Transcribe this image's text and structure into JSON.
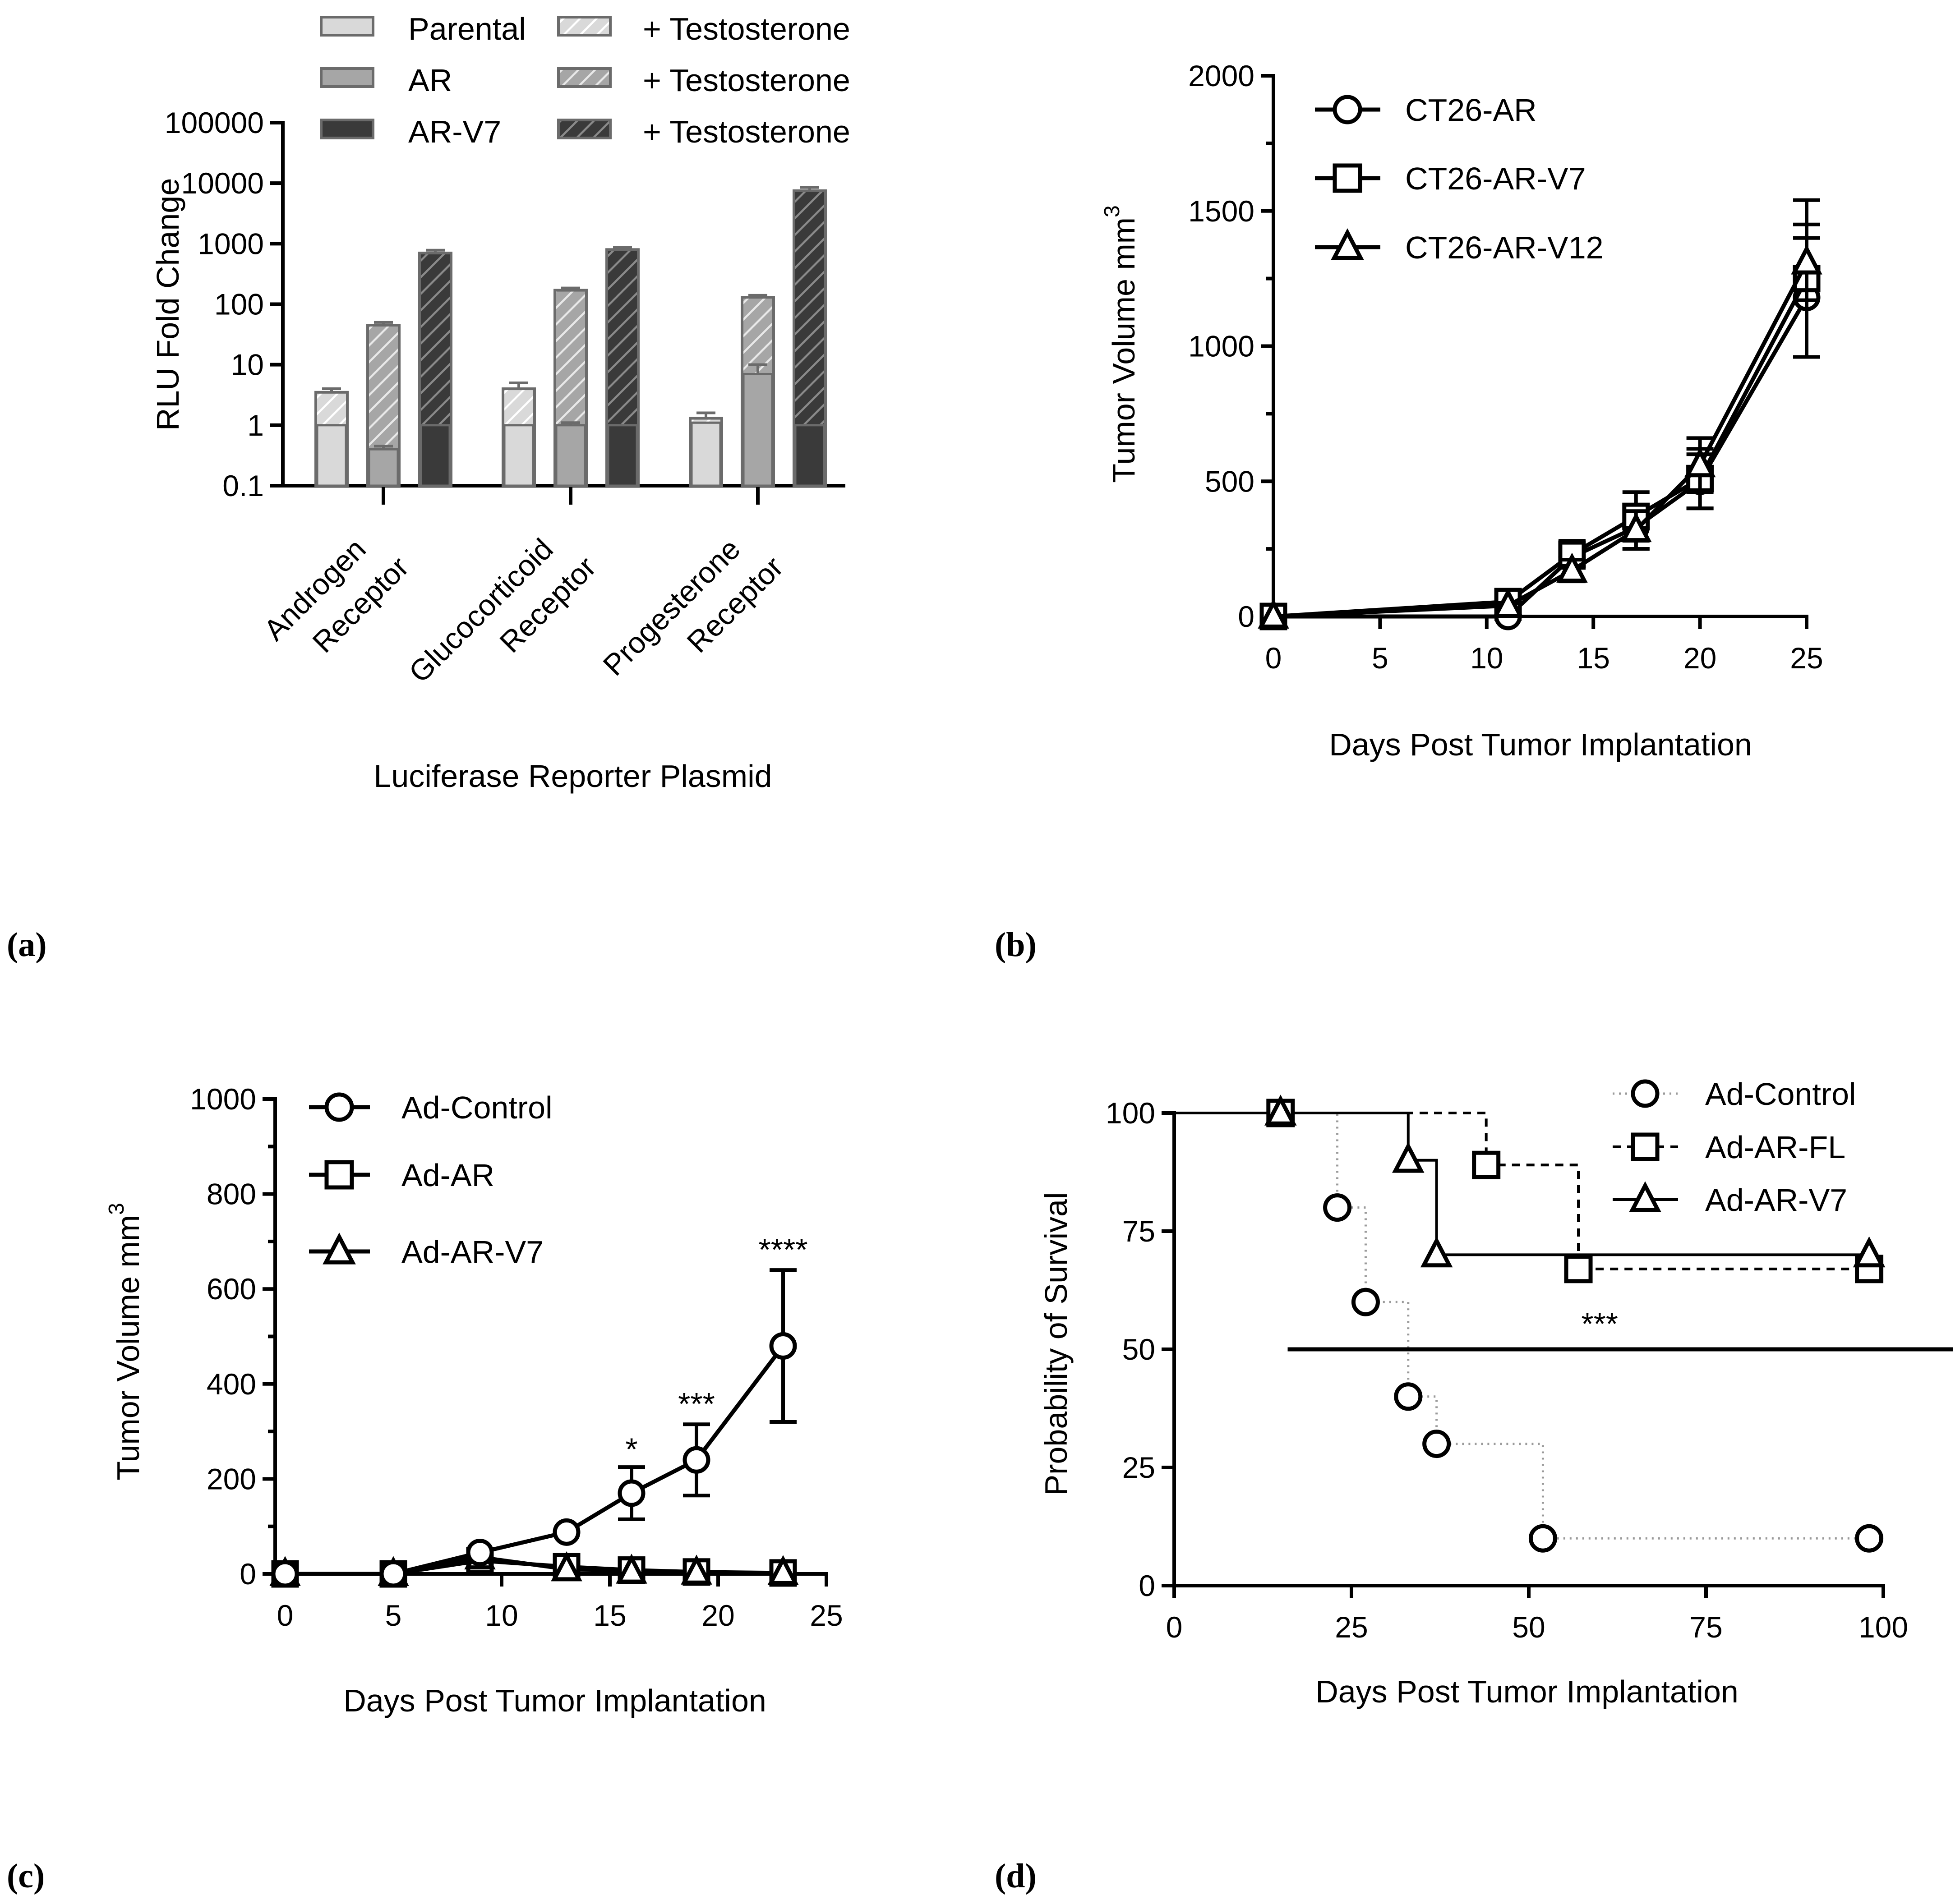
{
  "panels": {
    "a": {
      "label": "(a)"
    },
    "b": {
      "label": "(b)"
    },
    "c": {
      "label": "(c)"
    },
    "d": {
      "label": "(d)"
    }
  },
  "colors": {
    "parental": "#d9d9d9",
    "ar": "#a6a6a6",
    "ar_v7": "#3a3a3a",
    "outline": "#6b6b6b",
    "ink": "#000000",
    "dotted_gray": "#9a9a9a"
  },
  "chart_data": [
    {
      "id": "a",
      "type": "bar",
      "title": "",
      "xlabel": "Luciferase Reporter Plasmid",
      "ylabel": "RLU Fold Change",
      "yscale": "log",
      "ylim": [
        0.1,
        100000
      ],
      "yticks": [
        "0.1",
        "1",
        "10",
        "100",
        "1000",
        "10000",
        "100000"
      ],
      "categories": [
        [
          "Androgen",
          "Receptor"
        ],
        [
          "Glucocorticoid",
          "Receptor"
        ],
        [
          "Progesterone",
          "Receptor"
        ]
      ],
      "legend": [
        [
          "Parental",
          "+ Testosterone"
        ],
        [
          "AR",
          "+ Testosterone"
        ],
        [
          "AR-V7",
          "+ Testosterone"
        ]
      ],
      "legend_position": "top",
      "series": [
        {
          "name": "Parental",
          "color_key": "parental",
          "values": [
            1.0,
            1.0,
            1.1
          ],
          "errors": [
            0,
            0,
            0
          ]
        },
        {
          "name": "Parental + Testosterone",
          "color_key": "parental",
          "hatched": true,
          "values": [
            3.5,
            4.0,
            1.3
          ],
          "errors": [
            0.5,
            1.0,
            0.3
          ]
        },
        {
          "name": "AR",
          "color_key": "ar",
          "values": [
            0.4,
            1.0,
            7.0
          ],
          "errors": [
            0.05,
            0.1,
            3.0
          ]
        },
        {
          "name": "AR + Testosterone",
          "color_key": "ar",
          "hatched": true,
          "values": [
            45,
            170,
            130
          ],
          "errors": [
            5,
            15,
            10
          ]
        },
        {
          "name": "AR-V7",
          "color_key": "ar_v7",
          "values": [
            1.0,
            1.0,
            1.0
          ],
          "errors": [
            0,
            0,
            0
          ]
        },
        {
          "name": "AR-V7 + Testosterone",
          "color_key": "ar_v7",
          "hatched": true,
          "values": [
            700,
            800,
            7500
          ],
          "errors": [
            80,
            70,
            1000
          ]
        }
      ]
    },
    {
      "id": "b",
      "type": "line",
      "title": "",
      "xlabel": "Days Post Tumor Implantation",
      "ylabel": "Tumor Volume mm",
      "ylabel_superscript": "3",
      "xlim": [
        0,
        25
      ],
      "ylim": [
        0,
        2000
      ],
      "xticks": [
        "0",
        "5",
        "10",
        "15",
        "20",
        "25"
      ],
      "yticks": [
        "0",
        "500",
        "1000",
        "1500",
        "2000"
      ],
      "legend_position": "top-left",
      "series": [
        {
          "name": "CT26-AR",
          "marker": "circle",
          "x": [
            0,
            11,
            14,
            17,
            20,
            25
          ],
          "y": [
            0,
            0,
            220,
            330,
            500,
            1180
          ],
          "err": [
            0,
            10,
            40,
            80,
            100,
            220
          ]
        },
        {
          "name": "CT26-AR-V7",
          "marker": "square",
          "x": [
            0,
            11,
            14,
            17,
            20,
            25
          ],
          "y": [
            0,
            55,
            230,
            370,
            510,
            1250
          ],
          "err": [
            0,
            15,
            50,
            90,
            110,
            290
          ]
        },
        {
          "name": "CT26-AR-V12",
          "marker": "triangle",
          "x": [
            0,
            11,
            14,
            17,
            20,
            25
          ],
          "y": [
            0,
            40,
            170,
            320,
            560,
            1310
          ],
          "err": [
            0,
            10,
            40,
            70,
            100,
            140
          ]
        }
      ]
    },
    {
      "id": "c",
      "type": "line",
      "title": "",
      "xlabel": "Days Post Tumor Implantation",
      "ylabel": "Tumor Volume mm",
      "ylabel_superscript": "3",
      "xlim": [
        0,
        25
      ],
      "ylim": [
        0,
        1000
      ],
      "xticks": [
        "0",
        "5",
        "10",
        "15",
        "20",
        "25"
      ],
      "yticks": [
        "0",
        "200",
        "400",
        "600",
        "800",
        "1000"
      ],
      "legend_position": "top-left",
      "series": [
        {
          "name": "Ad-Control",
          "marker": "circle",
          "x": [
            0,
            5,
            9,
            13,
            16,
            19,
            23
          ],
          "y": [
            0,
            0,
            45,
            88,
            170,
            240,
            480
          ],
          "err": [
            0,
            0,
            10,
            15,
            55,
            75,
            160
          ]
        },
        {
          "name": "Ad-AR",
          "marker": "square",
          "x": [
            0,
            5,
            9,
            13,
            16,
            19,
            23
          ],
          "y": [
            0,
            0,
            28,
            15,
            8,
            4,
            2
          ],
          "err": [
            0,
            0,
            8,
            5,
            3,
            2,
            1
          ]
        },
        {
          "name": "Ad-AR-V7",
          "marker": "triangle",
          "x": [
            0,
            5,
            9,
            13,
            16,
            19,
            23
          ],
          "y": [
            0,
            0,
            35,
            10,
            5,
            3,
            2
          ],
          "err": [
            0,
            0,
            8,
            4,
            2,
            1,
            1
          ]
        }
      ],
      "annotations": [
        {
          "text": "*",
          "x": 16,
          "y": 240
        },
        {
          "text": "***",
          "x": 19,
          "y": 335
        },
        {
          "text": "****",
          "x": 23,
          "y": 660
        }
      ]
    },
    {
      "id": "d",
      "type": "line",
      "subtype": "survival-step",
      "title": "",
      "xlabel": "Days Post Tumor Implantation",
      "ylabel": "Probability of Survival",
      "xlim": [
        0,
        100
      ],
      "ylim": [
        0,
        100
      ],
      "xticks": [
        "0",
        "25",
        "50",
        "75",
        "100"
      ],
      "yticks": [
        "0",
        "25",
        "50",
        "75",
        "100"
      ],
      "legend_position": "top-right",
      "reference_line_y": 50,
      "series": [
        {
          "name": "Ad-Control",
          "marker": "circle",
          "line_style": "dotted",
          "x": [
            15,
            23,
            27,
            33,
            37,
            52,
            98
          ],
          "y": [
            100,
            80,
            60,
            40,
            30,
            10,
            10
          ]
        },
        {
          "name": "Ad-AR-FL",
          "marker": "square",
          "line_style": "dashed",
          "x": [
            15,
            44,
            57,
            98
          ],
          "y": [
            100,
            89,
            67,
            67
          ]
        },
        {
          "name": "Ad-AR-V7",
          "marker": "triangle",
          "line_style": "solid",
          "x": [
            15,
            33,
            37,
            98
          ],
          "y": [
            100,
            90,
            70,
            70
          ]
        }
      ],
      "annotations": [
        {
          "text": "***",
          "x": 60,
          "y": 55
        }
      ]
    }
  ]
}
